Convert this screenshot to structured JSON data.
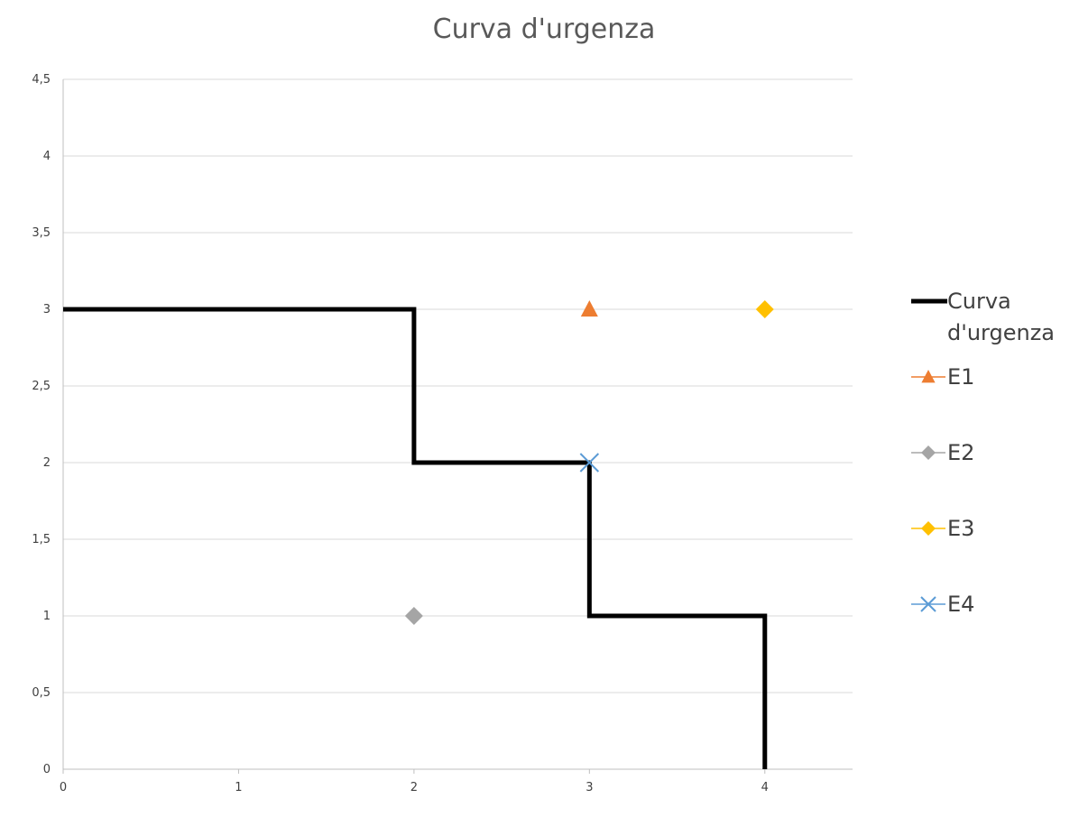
{
  "chart_data": {
    "type": "scatter",
    "title": "Curva d'urgenza",
    "xlabel": "",
    "ylabel": "",
    "xlim": [
      0,
      4.5
    ],
    "ylim": [
      0,
      4.5
    ],
    "x_ticks": [
      {
        "value": 0,
        "label": "0"
      },
      {
        "value": 1,
        "label": "1"
      },
      {
        "value": 2,
        "label": "2"
      },
      {
        "value": 3,
        "label": "3"
      },
      {
        "value": 4,
        "label": "4"
      }
    ],
    "y_ticks": [
      {
        "value": 0,
        "label": "0"
      },
      {
        "value": 0.5,
        "label": "0,5"
      },
      {
        "value": 1,
        "label": "1"
      },
      {
        "value": 1.5,
        "label": "1,5"
      },
      {
        "value": 2,
        "label": "2"
      },
      {
        "value": 2.5,
        "label": "2,5"
      },
      {
        "value": 3,
        "label": "3"
      },
      {
        "value": 3.5,
        "label": "3,5"
      },
      {
        "value": 4,
        "label": "4"
      },
      {
        "value": 4.5,
        "label": "4,5"
      }
    ],
    "grid": "horizontal",
    "legend_position": "right",
    "series": [
      {
        "name": "Curva d'urgenza",
        "kind": "line",
        "color": "#000000",
        "points": [
          [
            0,
            3
          ],
          [
            2,
            3
          ],
          [
            2,
            2
          ],
          [
            3,
            2
          ],
          [
            3,
            1
          ],
          [
            4,
            1
          ],
          [
            4,
            0
          ]
        ]
      },
      {
        "name": "E1",
        "kind": "marker",
        "marker": "triangle",
        "color": "#ED7D31",
        "points": [
          [
            3,
            3
          ]
        ]
      },
      {
        "name": "E2",
        "kind": "marker",
        "marker": "diamond",
        "color": "#A5A5A5",
        "points": [
          [
            2,
            1
          ]
        ]
      },
      {
        "name": "E3",
        "kind": "marker",
        "marker": "diamond",
        "color": "#FFC000",
        "points": [
          [
            4,
            3
          ]
        ]
      },
      {
        "name": "E4",
        "kind": "marker",
        "marker": "x",
        "color": "#5B9BD5",
        "points": [
          [
            3,
            2
          ]
        ]
      }
    ]
  }
}
